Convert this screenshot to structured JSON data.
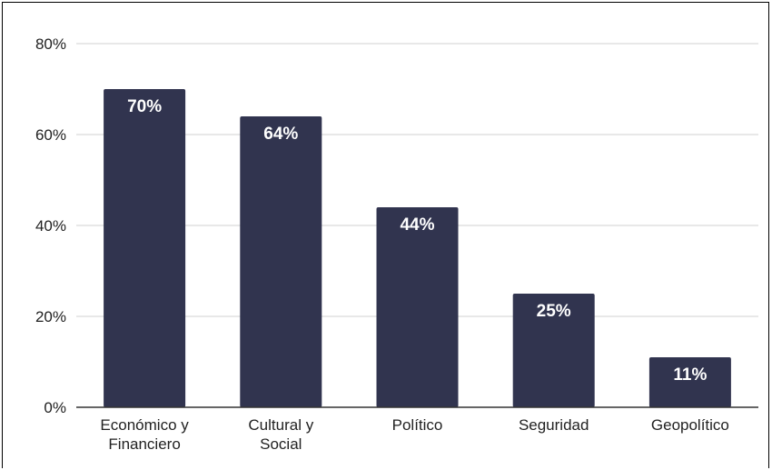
{
  "chart_data": {
    "type": "bar",
    "title": "",
    "xlabel": "",
    "ylabel": "",
    "categories": [
      [
        "Económico y",
        "Financiero"
      ],
      [
        "Cultural y",
        "Social"
      ],
      [
        "Político"
      ],
      [
        "Seguridad"
      ],
      [
        "Geopolítico"
      ]
    ],
    "values": [
      70,
      64,
      44,
      25,
      11
    ],
    "data_labels": [
      "70%",
      "64%",
      "44%",
      "25%",
      "11%"
    ],
    "ylim": [
      0,
      80
    ],
    "yticks": [
      0,
      20,
      40,
      60,
      80
    ],
    "ytick_labels": [
      "0%",
      "20%",
      "40%",
      "60%",
      "80%"
    ],
    "grid": true,
    "legend": "none",
    "colors": {
      "bar": "#31344f",
      "grid": "#d0d0d0",
      "axis": "#333333",
      "label": "#ffffff"
    }
  }
}
